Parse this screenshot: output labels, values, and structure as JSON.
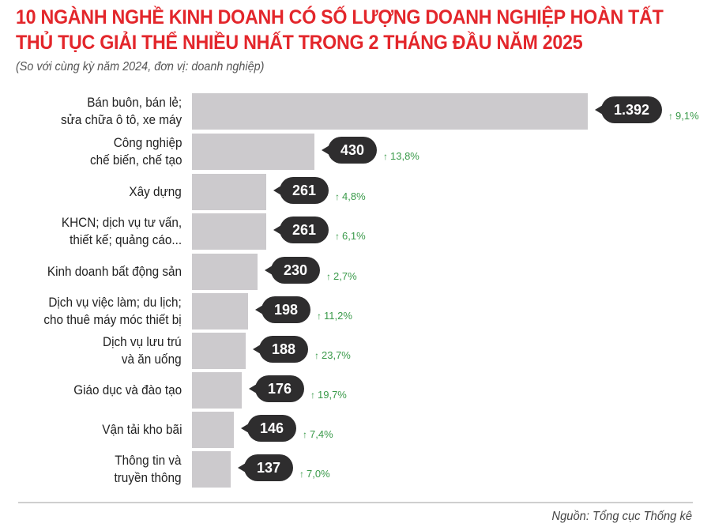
{
  "header": {
    "title_line1": "10 NGÀNH NGHỀ KINH DOANH CÓ SỐ LƯỢNG DOANH NGHIỆP HOÀN TẤT",
    "title_line2": "THỦ TỤC GIẢI THỂ NHIỀU NHẤT TRONG 2 THÁNG ĐẦU NĂM 2025",
    "subtitle": "(So với cùng kỳ năm 2024, đơn vị: doanh nghiệp)"
  },
  "footer": {
    "source": "Nguồn: Tổng cục Thống kê"
  },
  "colors": {
    "title": "#e3262b",
    "bar": "#cccacd",
    "bubble": "#2e2d2e",
    "increase": "#3a9a4a"
  },
  "rows": [
    {
      "line1": "Bán buôn, bán lẻ;",
      "line2": "sửa chữa ô tô, xe máy",
      "value_label": "1.392",
      "change": "9,1%",
      "arrow_icon": "arrow-up"
    },
    {
      "line1": "Công nghiệp",
      "line2": "chế biến, chế tạo",
      "value_label": "430",
      "change": "13,8%",
      "arrow_icon": "arrow-up"
    },
    {
      "line1": "Xây dựng",
      "line2": "",
      "value_label": "261",
      "change": "4,8%",
      "arrow_icon": "arrow-up"
    },
    {
      "line1": "KHCN; dịch vụ tư vấn,",
      "line2": "thiết kế; quảng cáo...",
      "value_label": "261",
      "change": "6,1%",
      "arrow_icon": "arrow-up"
    },
    {
      "line1": "Kinh doanh bất động sản",
      "line2": "",
      "value_label": "230",
      "change": "2,7%",
      "arrow_icon": "arrow-up"
    },
    {
      "line1": "Dịch vụ việc làm; du lịch;",
      "line2": "cho thuê máy móc thiết bị",
      "value_label": "198",
      "change": "11,2%",
      "arrow_icon": "arrow-up"
    },
    {
      "line1": "Dịch vụ lưu trú",
      "line2": "và ăn uống",
      "value_label": "188",
      "change": "23,7%",
      "arrow_icon": "arrow-up"
    },
    {
      "line1": "Giáo dục và đào tạo",
      "line2": "",
      "value_label": "176",
      "change": "19,7%",
      "arrow_icon": "arrow-up"
    },
    {
      "line1": "Vận tải kho bãi",
      "line2": "",
      "value_label": "146",
      "change": "7,4%",
      "arrow_icon": "arrow-up"
    },
    {
      "line1": "Thông tin và",
      "line2": "truyền thông",
      "value_label": "137",
      "change": "7,0%",
      "arrow_icon": "arrow-up"
    }
  ],
  "chart_data": {
    "type": "bar",
    "orientation": "horizontal",
    "title": "10 NGÀNH NGHỀ KINH DOANH CÓ SỐ LƯỢNG DOANH NGHIỆP HOÀN TẤT THỦ TỤC GIẢI THỂ NHIỀU NHẤT TRONG 2 THÁNG ĐẦU NĂM 2025",
    "subtitle": "(So với cùng kỳ năm 2024, đơn vị: doanh nghiệp)",
    "categories": [
      "Bán buôn, bán lẻ; sửa chữa ô tô, xe máy",
      "Công nghiệp chế biến, chế tạo",
      "Xây dựng",
      "KHCN; dịch vụ tư vấn, thiết kế; quảng cáo...",
      "Kinh doanh bất động sản",
      "Dịch vụ việc làm; du lịch; cho thuê máy móc thiết bị",
      "Dịch vụ lưu trú và ăn uống",
      "Giáo dục và đào tạo",
      "Vận tải kho bãi",
      "Thông tin và truyền thông"
    ],
    "series": [
      {
        "name": "Số doanh nghiệp",
        "values": [
          1392,
          430,
          261,
          261,
          230,
          198,
          188,
          176,
          146,
          137
        ]
      },
      {
        "name": "Thay đổi so với cùng kỳ 2024 (%)",
        "values": [
          9.1,
          13.8,
          4.8,
          6.1,
          2.7,
          11.2,
          23.7,
          19.7,
          7.4,
          7.0
        ]
      }
    ],
    "xlabel": "",
    "ylabel": "",
    "unit": "doanh nghiệp",
    "grid": false,
    "legend": "none",
    "source": "Nguồn: Tổng cục Thống kê"
  }
}
